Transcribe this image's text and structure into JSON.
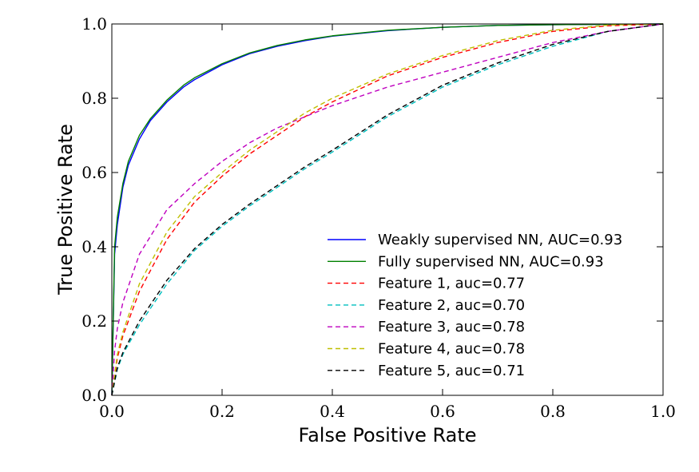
{
  "chart_data": {
    "type": "line",
    "title": "",
    "xlabel": "False Positive Rate",
    "ylabel": "True Positive Rate",
    "xlim": [
      0.0,
      1.0
    ],
    "ylim": [
      0.0,
      1.0
    ],
    "xticks": [
      "0.0",
      "0.2",
      "0.4",
      "0.6",
      "0.8",
      "1.0"
    ],
    "yticks": [
      "0.0",
      "0.2",
      "0.4",
      "0.6",
      "0.8",
      "1.0"
    ],
    "grid": false,
    "legend_position": "lower-right",
    "series": [
      {
        "name": "Weakly supervised NN, AUC=0.93",
        "color": "#0000ff",
        "style": "solid",
        "x": [
          0,
          0.005,
          0.01,
          0.02,
          0.03,
          0.05,
          0.07,
          0.1,
          0.13,
          0.15,
          0.2,
          0.25,
          0.3,
          0.35,
          0.4,
          0.5,
          0.6,
          0.7,
          0.8,
          0.9,
          1.0
        ],
        "y": [
          0,
          0.38,
          0.46,
          0.56,
          0.62,
          0.69,
          0.74,
          0.79,
          0.83,
          0.85,
          0.89,
          0.92,
          0.94,
          0.955,
          0.967,
          0.982,
          0.991,
          0.996,
          0.998,
          0.999,
          1.0
        ]
      },
      {
        "name": "Fully supervised NN, AUC=0.93",
        "color": "#008000",
        "style": "solid",
        "x": [
          0,
          0.005,
          0.01,
          0.02,
          0.03,
          0.05,
          0.07,
          0.1,
          0.13,
          0.15,
          0.2,
          0.25,
          0.3,
          0.35,
          0.4,
          0.5,
          0.6,
          0.7,
          0.8,
          0.9,
          1.0
        ],
        "y": [
          0,
          0.4,
          0.48,
          0.57,
          0.63,
          0.7,
          0.745,
          0.795,
          0.835,
          0.855,
          0.893,
          0.922,
          0.942,
          0.957,
          0.968,
          0.983,
          0.991,
          0.996,
          0.998,
          0.999,
          1.0
        ]
      },
      {
        "name": "Feature 1, auc=0.77",
        "color": "#ff0000",
        "style": "dashed",
        "x": [
          0,
          0.01,
          0.02,
          0.05,
          0.1,
          0.15,
          0.2,
          0.25,
          0.3,
          0.35,
          0.4,
          0.5,
          0.6,
          0.7,
          0.8,
          0.9,
          1.0
        ],
        "y": [
          0,
          0.1,
          0.16,
          0.28,
          0.42,
          0.52,
          0.59,
          0.65,
          0.7,
          0.75,
          0.79,
          0.86,
          0.91,
          0.95,
          0.98,
          0.995,
          1.0
        ]
      },
      {
        "name": "Feature 2, auc=0.70",
        "color": "#00bfbf",
        "style": "dashed",
        "x": [
          0,
          0.01,
          0.02,
          0.05,
          0.1,
          0.15,
          0.2,
          0.25,
          0.3,
          0.35,
          0.4,
          0.5,
          0.6,
          0.7,
          0.8,
          0.9,
          1.0
        ],
        "y": [
          0,
          0.07,
          0.11,
          0.19,
          0.3,
          0.39,
          0.455,
          0.51,
          0.56,
          0.61,
          0.655,
          0.75,
          0.83,
          0.89,
          0.94,
          0.98,
          1.0
        ]
      },
      {
        "name": "Feature 3, auc=0.78",
        "color": "#bf00bf",
        "style": "dashed",
        "x": [
          0,
          0.005,
          0.01,
          0.02,
          0.05,
          0.1,
          0.15,
          0.2,
          0.25,
          0.3,
          0.35,
          0.4,
          0.5,
          0.6,
          0.7,
          0.8,
          0.9,
          1.0
        ],
        "y": [
          0,
          0.12,
          0.18,
          0.25,
          0.38,
          0.5,
          0.57,
          0.63,
          0.68,
          0.72,
          0.75,
          0.78,
          0.83,
          0.87,
          0.91,
          0.95,
          0.98,
          1.0
        ]
      },
      {
        "name": "Feature 4, auc=0.78",
        "color": "#bfbf00",
        "style": "dashed",
        "x": [
          0,
          0.01,
          0.02,
          0.05,
          0.1,
          0.15,
          0.2,
          0.25,
          0.3,
          0.35,
          0.4,
          0.5,
          0.6,
          0.7,
          0.8,
          0.9,
          1.0
        ],
        "y": [
          0,
          0.11,
          0.17,
          0.3,
          0.44,
          0.535,
          0.6,
          0.66,
          0.71,
          0.76,
          0.8,
          0.865,
          0.915,
          0.955,
          0.983,
          0.997,
          1.0
        ]
      },
      {
        "name": "Feature 5, auc=0.71",
        "color": "#000000",
        "style": "dashed",
        "x": [
          0,
          0.01,
          0.02,
          0.05,
          0.1,
          0.15,
          0.2,
          0.25,
          0.3,
          0.35,
          0.4,
          0.5,
          0.6,
          0.7,
          0.8,
          0.9,
          1.0
        ],
        "y": [
          0,
          0.075,
          0.115,
          0.2,
          0.31,
          0.395,
          0.46,
          0.515,
          0.565,
          0.615,
          0.66,
          0.755,
          0.835,
          0.895,
          0.945,
          0.98,
          1.0
        ]
      }
    ]
  }
}
